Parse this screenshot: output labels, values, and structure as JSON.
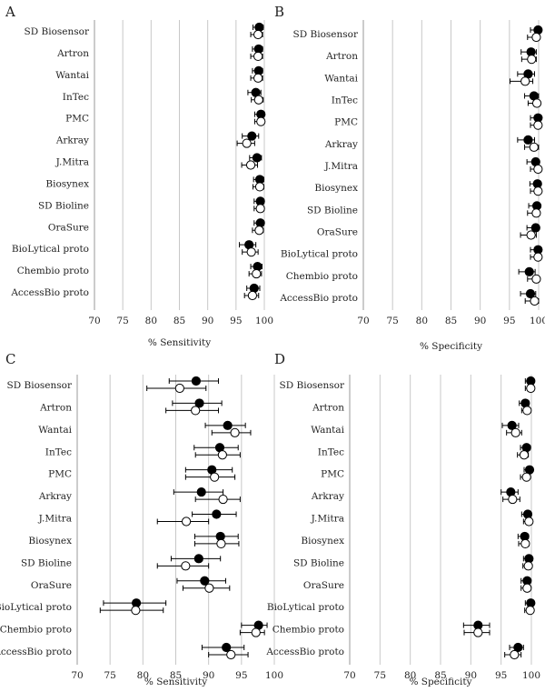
{
  "legend": [
    {
      "marker": "filled-circle",
      "color": "#000000"
    },
    {
      "marker": "open-circle",
      "color": "#ffffff"
    }
  ],
  "chart_data": [
    {
      "panel": "A",
      "type": "scatter",
      "xlabel": "% Sensitivity",
      "xlim": [
        70,
        100
      ],
      "xticks": [
        70,
        75,
        80,
        85,
        90,
        95,
        100
      ],
      "grid": true,
      "categories": [
        "SD Biosensor",
        "Artron",
        "Wantai",
        "InTec",
        "PMC",
        "Arkray",
        "J.Mitra",
        "Biosynex",
        "SD Bioline",
        "OraSure",
        "BioLytical proto",
        "Chembio proto",
        "AccessBio proto"
      ],
      "series": [
        {
          "marker": "filled",
          "values": [
            99.1,
            99.0,
            99.0,
            98.5,
            99.4,
            97.8,
            98.7,
            99.2,
            99.3,
            99.3,
            97.3,
            98.8,
            98.2
          ],
          "ci_low": [
            98.0,
            97.9,
            97.9,
            97.1,
            98.3,
            96.1,
            97.4,
            98.1,
            98.2,
            98.2,
            95.6,
            97.6,
            96.9
          ],
          "ci_high": [
            99.8,
            99.7,
            99.7,
            99.4,
            100,
            99.0,
            99.5,
            99.9,
            99.9,
            99.9,
            98.5,
            99.6,
            99.2
          ]
        },
        {
          "marker": "open",
          "values": [
            98.9,
            98.9,
            98.9,
            99.0,
            99.4,
            96.9,
            97.6,
            99.2,
            99.3,
            99.1,
            97.7,
            98.6,
            97.9
          ],
          "ci_low": [
            97.6,
            97.6,
            97.6,
            97.7,
            98.3,
            95.2,
            96.0,
            98.0,
            98.2,
            97.9,
            96.1,
            97.3,
            96.5
          ],
          "ci_high": [
            99.7,
            99.7,
            99.7,
            99.8,
            100,
            98.3,
            98.8,
            99.9,
            99.9,
            99.8,
            98.9,
            99.5,
            99.0
          ]
        }
      ]
    },
    {
      "panel": "B",
      "type": "scatter",
      "xlabel": "% Specificity",
      "xlim": [
        70,
        100
      ],
      "xticks": [
        70,
        75,
        80,
        85,
        90,
        95,
        100
      ],
      "grid": true,
      "categories": [
        "SD Biosensor",
        "Artron",
        "Wantai",
        "InTec",
        "PMC",
        "Arkray",
        "J.Mitra",
        "Biosynex",
        "SD Bioline",
        "OraSure",
        "BioLytical proto",
        "Chembio proto",
        "AccessBio proto"
      ],
      "series": [
        {
          "marker": "filled",
          "values": [
            99.9,
            98.7,
            98.2,
            99.2,
            99.9,
            98.2,
            99.5,
            99.8,
            99.7,
            99.5,
            99.9,
            98.4,
            98.6
          ],
          "ci_low": [
            98.6,
            97.0,
            96.4,
            97.6,
            98.6,
            96.4,
            98.0,
            98.5,
            98.3,
            98.0,
            98.6,
            96.6,
            96.9
          ],
          "ci_high": [
            100,
            99.6,
            99.3,
            100,
            100,
            99.3,
            100,
            100,
            100,
            100,
            100,
            99.4,
            99.5
          ]
        },
        {
          "marker": "open",
          "values": [
            99.6,
            98.8,
            97.7,
            99.7,
            99.9,
            99.2,
            99.9,
            99.9,
            99.6,
            98.7,
            99.9,
            99.6,
            99.3
          ],
          "ci_low": [
            98.1,
            97.1,
            95.1,
            98.2,
            98.6,
            97.6,
            98.6,
            98.6,
            98.1,
            96.9,
            98.6,
            98.1,
            97.7
          ],
          "ci_high": [
            100,
            99.6,
            99.0,
            100,
            100,
            100,
            100,
            100,
            100,
            99.6,
            100,
            100,
            100
          ]
        }
      ]
    },
    {
      "panel": "C",
      "type": "scatter",
      "xlabel": "% Sensitivity",
      "xlim": [
        70,
        100
      ],
      "xticks": [
        70,
        75,
        80,
        85,
        90,
        95,
        100
      ],
      "grid": true,
      "categories": [
        "SD Biosensor",
        "Artron",
        "Wantai",
        "InTec",
        "PMC",
        "Arkray",
        "J.Mitra",
        "Biosynex",
        "SD Bioline",
        "OraSure",
        "BioLytical proto",
        "Chembio proto",
        "AccessBio proto"
      ],
      "series": [
        {
          "marker": "filled",
          "values": [
            88.1,
            88.6,
            92.9,
            91.7,
            90.5,
            88.9,
            91.2,
            91.8,
            88.5,
            89.4,
            79.0,
            97.6,
            92.7
          ],
          "ci_low": [
            84.0,
            84.5,
            89.5,
            87.8,
            86.5,
            84.7,
            87.5,
            87.9,
            84.3,
            85.2,
            74.0,
            95.0,
            89.0
          ],
          "ci_high": [
            91.5,
            92.0,
            95.6,
            94.5,
            93.6,
            92.2,
            94.2,
            94.5,
            91.8,
            92.6,
            83.5,
            98.9,
            95.4
          ]
        },
        {
          "marker": "open",
          "values": [
            85.6,
            88.0,
            94.0,
            92.1,
            90.9,
            92.2,
            86.6,
            91.9,
            86.5,
            90.1,
            78.9,
            97.2,
            93.4
          ],
          "ci_low": [
            80.6,
            83.5,
            90.5,
            88.0,
            86.5,
            88.0,
            82.2,
            87.9,
            82.2,
            86.1,
            73.5,
            94.8,
            90.0
          ],
          "ci_high": [
            89.6,
            91.5,
            96.4,
            94.8,
            94.0,
            94.8,
            90.0,
            94.6,
            90.0,
            93.2,
            83.1,
            98.5,
            96.0
          ]
        }
      ]
    },
    {
      "panel": "D",
      "type": "scatter",
      "xlabel": "% Specificity",
      "xlim": [
        70,
        100
      ],
      "xticks": [
        70,
        75,
        80,
        85,
        90,
        95,
        100
      ],
      "grid": true,
      "categories": [
        "SD Biosensor",
        "Artron",
        "Wantai",
        "InTec",
        "PMC",
        "Arkray",
        "J.Mitra",
        "Biosynex",
        "SD Bioline",
        "OraSure",
        "BioLytical proto",
        "Chembio proto",
        "AccessBio proto"
      ],
      "series": [
        {
          "marker": "filled",
          "values": [
            99.9,
            99.0,
            96.8,
            99.2,
            99.7,
            96.6,
            99.4,
            98.9,
            99.6,
            99.3,
            99.9,
            91.2,
            97.8
          ],
          "ci_low": [
            99.0,
            98.0,
            95.2,
            98.2,
            98.8,
            95.0,
            98.4,
            97.8,
            98.7,
            98.3,
            99.0,
            88.8,
            96.4
          ],
          "ci_high": [
            100,
            99.6,
            97.9,
            99.8,
            100,
            97.8,
            99.9,
            99.5,
            100,
            99.8,
            100,
            93.1,
            98.7
          ]
        },
        {
          "marker": "open",
          "values": [
            99.9,
            99.3,
            97.4,
            98.8,
            99.2,
            96.9,
            99.6,
            99.0,
            99.5,
            99.3,
            99.8,
            91.2,
            97.2
          ],
          "ci_low": [
            99.0,
            98.4,
            95.9,
            97.7,
            98.2,
            95.3,
            98.7,
            97.9,
            98.6,
            98.3,
            98.9,
            88.9,
            95.6
          ],
          "ci_high": [
            100,
            99.8,
            98.4,
            99.5,
            99.7,
            98.1,
            100,
            99.6,
            99.9,
            99.8,
            100,
            93.1,
            98.3
          ]
        }
      ]
    }
  ]
}
